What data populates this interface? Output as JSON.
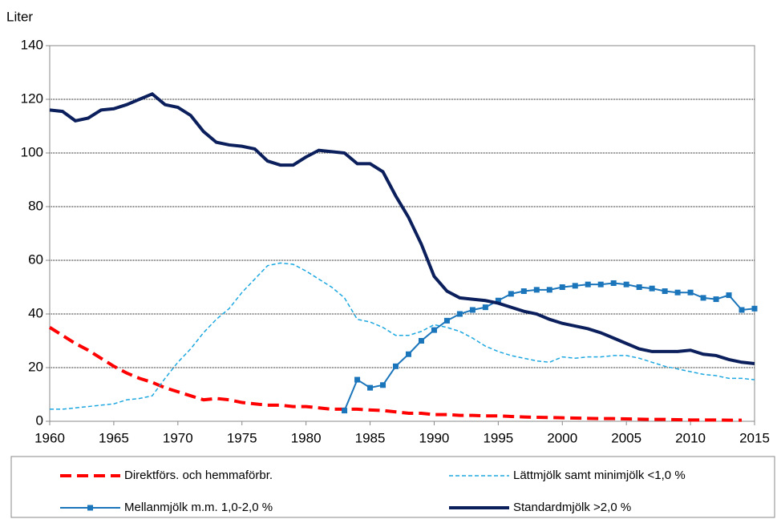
{
  "chart_data": {
    "type": "line",
    "y_label": "Liter",
    "x": [
      1960,
      1961,
      1962,
      1963,
      1964,
      1965,
      1966,
      1967,
      1968,
      1969,
      1970,
      1971,
      1972,
      1973,
      1974,
      1975,
      1976,
      1977,
      1978,
      1979,
      1980,
      1981,
      1982,
      1983,
      1984,
      1985,
      1986,
      1987,
      1988,
      1989,
      1990,
      1991,
      1992,
      1993,
      1994,
      1995,
      1996,
      1997,
      1998,
      1999,
      2000,
      2001,
      2002,
      2003,
      2004,
      2005,
      2006,
      2007,
      2008,
      2009,
      2010,
      2011,
      2012,
      2013,
      2014,
      2015
    ],
    "xlim": [
      1960,
      2015
    ],
    "xticks": [
      1960,
      1965,
      1970,
      1975,
      1980,
      1985,
      1990,
      1995,
      2000,
      2005,
      2010,
      2015
    ],
    "ylim": [
      0,
      140
    ],
    "yticks": [
      0,
      20,
      40,
      60,
      80,
      100,
      120,
      140
    ],
    "grid": true,
    "series": [
      {
        "name": "Direktförs. och hemmaförbr.",
        "color": "#ff0000",
        "dash": "dashed",
        "width": 4,
        "values": [
          35,
          32,
          29,
          26.5,
          23.5,
          20.5,
          18,
          16,
          14.5,
          12.5,
          11,
          9.5,
          8,
          8.5,
          8,
          7,
          6.5,
          6,
          6,
          5.5,
          5.5,
          5,
          4.5,
          4.5,
          4.5,
          4.2,
          4,
          3.5,
          3,
          3,
          2.5,
          2.5,
          2.2,
          2.2,
          2,
          2,
          1.8,
          1.6,
          1.5,
          1.4,
          1.3,
          1.2,
          1.1,
          1,
          1,
          0.9,
          0.8,
          0.7,
          0.7,
          0.6,
          0.5,
          0.5,
          0.5,
          0.4,
          0.4,
          null
        ]
      },
      {
        "name": "Lättmjölk samt minimjölk <1,0 %",
        "color": "#1ca7e0",
        "dash": "short",
        "width": 1.5,
        "values": [
          4.5,
          4.5,
          5,
          5.5,
          6,
          6.5,
          8,
          8.5,
          9.5,
          16,
          22,
          27,
          33,
          38,
          42,
          48,
          53,
          58,
          59,
          58.5,
          56,
          53,
          50,
          46,
          38,
          37,
          35,
          32,
          32,
          33.5,
          36,
          35,
          33.5,
          31,
          28,
          26,
          24.5,
          23.5,
          22.5,
          22,
          24,
          23.5,
          24,
          24,
          24.5,
          24.5,
          23.5,
          22,
          20.5,
          19.5,
          18.5,
          17.5,
          17,
          16,
          16,
          15.5
        ]
      },
      {
        "name": "Mellanmjölk m.m. 1,0-2,0 %",
        "color": "#1b75bb",
        "dash": "solid",
        "width": 2,
        "marker": "square",
        "values": [
          null,
          null,
          null,
          null,
          null,
          null,
          null,
          null,
          null,
          null,
          null,
          null,
          null,
          null,
          null,
          null,
          null,
          null,
          null,
          null,
          null,
          null,
          null,
          4,
          15.5,
          12.5,
          13.5,
          20.5,
          25,
          30,
          34,
          37.5,
          40,
          41.5,
          42.5,
          45,
          47.5,
          48.5,
          49,
          49,
          50,
          50.5,
          51,
          51,
          51.5,
          51,
          50,
          49.5,
          48.5,
          48,
          48,
          46,
          45.5,
          47,
          41.5,
          42
        ]
      },
      {
        "name": "Standardmjölk >2,0 %",
        "color": "#0b1f5c",
        "dash": "solid",
        "width": 4,
        "values": [
          116,
          115.5,
          112,
          113,
          116,
          116.5,
          118,
          120,
          122,
          118,
          117,
          114,
          108,
          104,
          103,
          102.5,
          101.5,
          97,
          95.5,
          95.5,
          98.5,
          101,
          100.5,
          100,
          96,
          96,
          93,
          84,
          76,
          66,
          54,
          48.5,
          46,
          45.5,
          45,
          44,
          42.5,
          41,
          40,
          38,
          36.5,
          35.5,
          34.5,
          33,
          31,
          29,
          27,
          26,
          26,
          26,
          26.5,
          25,
          24.5,
          23,
          22,
          21.5
        ]
      }
    ]
  }
}
